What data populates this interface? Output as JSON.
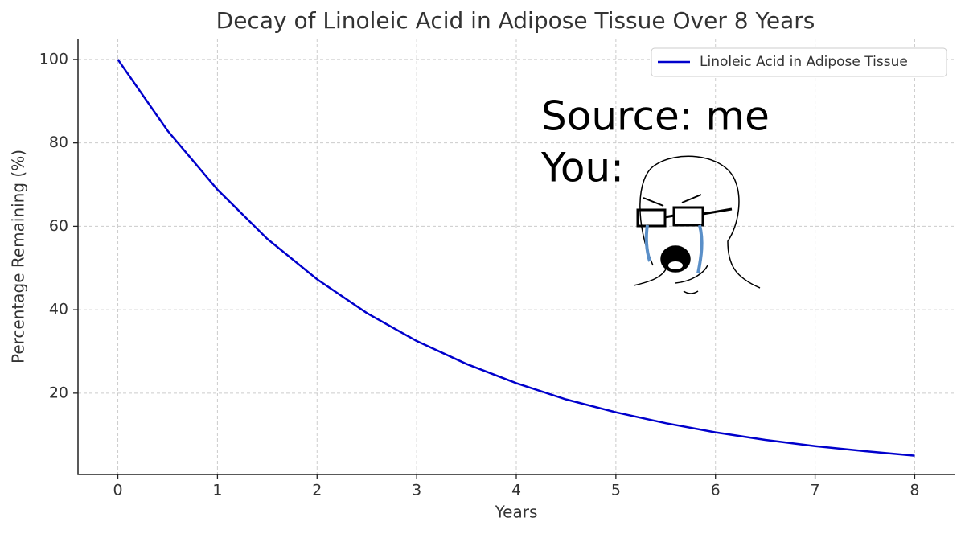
{
  "chart_data": {
    "type": "line",
    "title": "Decay of Linoleic Acid in Adipose Tissue Over 8 Years",
    "x_label": "Years",
    "y_label": "Percentage Remaining (%)",
    "x": [
      0,
      0.5,
      1,
      1.5,
      2,
      2.5,
      3,
      3.5,
      4,
      4.5,
      5,
      5.5,
      6,
      6.5,
      7,
      7.5,
      8
    ],
    "series": [
      {
        "name": "Linoleic Acid in Adipose Tissue",
        "color": "#0000cc",
        "values": [
          100,
          82.9,
          68.8,
          57.0,
          47.3,
          39.2,
          32.5,
          27.0,
          22.4,
          18.5,
          15.4,
          12.8,
          10.6,
          8.8,
          7.3,
          6.1,
          5.0
        ]
      }
    ],
    "xlim": [
      -0.4,
      8.4
    ],
    "ylim": [
      0.5,
      105
    ],
    "xticks": [
      0,
      1,
      2,
      3,
      4,
      5,
      6,
      7,
      8
    ],
    "yticks": [
      20,
      40,
      60,
      80,
      100
    ],
    "grid": true,
    "legend": "upper right",
    "annotations": [
      "Source: me",
      "You:"
    ]
  }
}
